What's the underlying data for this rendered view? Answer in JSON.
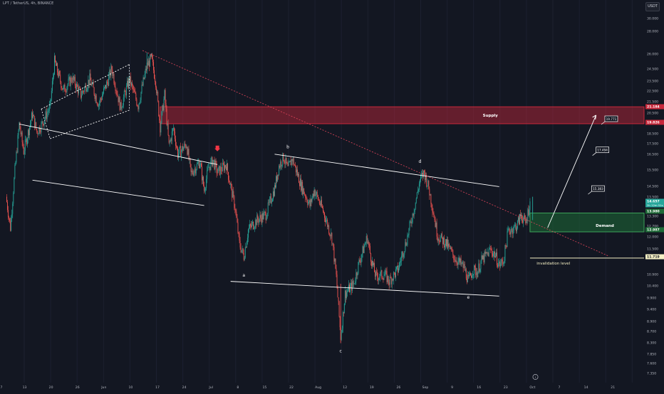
{
  "header": {
    "symbol_line": "LPT / TetherUS, 4h, BINANCE",
    "currency": "USDT",
    "info_icon": "info-circle-icon"
  },
  "colors": {
    "background": "#131722",
    "up": "#26a69a",
    "down": "#ef5350",
    "supply": "#c8283b",
    "demand": "#1e6b37",
    "invalidation": "#f5f0c4",
    "trendline": "#ffffff",
    "dotted_trend": "#e0445a",
    "arrow_marker": "#f23645"
  },
  "chart_data": {
    "type": "candlestick",
    "symbol": "LPT / TetherUS",
    "timeframe": "4h",
    "exchange": "BINANCE",
    "y_scale": "log",
    "ylim": [
      7.2,
      31.2
    ],
    "x_ticks": [
      "7",
      "13",
      "20",
      "26",
      "Jun",
      "10",
      "17",
      "24",
      "Jul",
      "8",
      "15",
      "22",
      "Aug",
      "12",
      "19",
      "26",
      "Sep",
      "9",
      "16",
      "23",
      "Oct",
      "7",
      "14",
      "21"
    ],
    "y_ticks": [
      "30.000",
      "28.000",
      "26.000",
      "24.500",
      "23.500",
      "22.500",
      "21.500",
      "20.500",
      "19.500",
      "18.500",
      "17.500",
      "16.500",
      "15.500",
      "14.500",
      "13.500",
      "13.300",
      "12.700",
      "12.000",
      "11.500",
      "10.900",
      "10.400",
      "9.900",
      "9.400",
      "8.900",
      "8.700",
      "8.300",
      "7.850",
      "7.600",
      "7.350"
    ],
    "path_points": [
      {
        "d": 0,
        "v": 14.9
      },
      {
        "d": 1,
        "v": 13.2
      },
      {
        "d": 2,
        "v": 16.5
      },
      {
        "d": 3,
        "v": 19.8
      },
      {
        "d": 4,
        "v": 17.8
      },
      {
        "d": 6,
        "v": 20.6
      },
      {
        "d": 7,
        "v": 19.2
      },
      {
        "d": 8,
        "v": 19.7
      },
      {
        "d": 10,
        "v": 21.2
      },
      {
        "d": 11,
        "v": 25.3
      },
      {
        "d": 13,
        "v": 22.6
      },
      {
        "d": 15,
        "v": 23.7
      },
      {
        "d": 17,
        "v": 22.2
      },
      {
        "d": 19,
        "v": 23.6
      },
      {
        "d": 21,
        "v": 21.4
      },
      {
        "d": 23,
        "v": 23.3
      },
      {
        "d": 24,
        "v": 24.6
      },
      {
        "d": 26,
        "v": 21.1
      },
      {
        "d": 28,
        "v": 23.6
      },
      {
        "d": 30,
        "v": 21.3
      },
      {
        "d": 32,
        "v": 24.9
      },
      {
        "d": 33,
        "v": 25.6
      },
      {
        "d": 34,
        "v": 23.4
      },
      {
        "d": 35,
        "v": 19.6
      },
      {
        "d": 36,
        "v": 22.2
      },
      {
        "d": 37,
        "v": 18.2
      },
      {
        "d": 38,
        "v": 19.5
      },
      {
        "d": 39,
        "v": 17.6
      },
      {
        "d": 41,
        "v": 18.3
      },
      {
        "d": 42,
        "v": 16.3
      },
      {
        "d": 44,
        "v": 17.1
      },
      {
        "d": 45,
        "v": 15.3
      },
      {
        "d": 46,
        "v": 16.7
      },
      {
        "d": 47,
        "v": 17.2
      },
      {
        "d": 48,
        "v": 16.4
      },
      {
        "d": 50,
        "v": 16.9
      },
      {
        "d": 52,
        "v": 14.3
      },
      {
        "d": 53,
        "v": 12.4
      },
      {
        "d": 54,
        "v": 11.8
      },
      {
        "d": 55,
        "v": 13.1
      },
      {
        "d": 57,
        "v": 13.6
      },
      {
        "d": 59,
        "v": 13.9
      },
      {
        "d": 61,
        "v": 15.4
      },
      {
        "d": 62,
        "v": 16.8
      },
      {
        "d": 63,
        "v": 17.4
      },
      {
        "d": 64,
        "v": 16.6
      },
      {
        "d": 65,
        "v": 17.3
      },
      {
        "d": 67,
        "v": 15.6
      },
      {
        "d": 69,
        "v": 14.4
      },
      {
        "d": 70,
        "v": 15.3
      },
      {
        "d": 72,
        "v": 14.1
      },
      {
        "d": 74,
        "v": 12.7
      },
      {
        "d": 75,
        "v": 10.9
      },
      {
        "d": 76,
        "v": 8.6
      },
      {
        "d": 77,
        "v": 10.2
      },
      {
        "d": 79,
        "v": 10.6
      },
      {
        "d": 80,
        "v": 11.4
      },
      {
        "d": 82,
        "v": 12.7
      },
      {
        "d": 83,
        "v": 11.6
      },
      {
        "d": 84,
        "v": 10.9
      },
      {
        "d": 86,
        "v": 11.0
      },
      {
        "d": 87,
        "v": 10.7
      },
      {
        "d": 89,
        "v": 11.2
      },
      {
        "d": 90,
        "v": 11.9
      },
      {
        "d": 91,
        "v": 12.6
      },
      {
        "d": 93,
        "v": 14.6
      },
      {
        "d": 94,
        "v": 15.9
      },
      {
        "d": 95,
        "v": 16.4
      },
      {
        "d": 96,
        "v": 15.4
      },
      {
        "d": 97,
        "v": 14.1
      },
      {
        "d": 98,
        "v": 12.8
      },
      {
        "d": 100,
        "v": 12.4
      },
      {
        "d": 102,
        "v": 11.7
      },
      {
        "d": 104,
        "v": 11.3
      },
      {
        "d": 105,
        "v": 10.7
      },
      {
        "d": 106,
        "v": 11.2
      },
      {
        "d": 107,
        "v": 11.1
      },
      {
        "d": 108,
        "v": 11.6
      },
      {
        "d": 110,
        "v": 12.1
      },
      {
        "d": 111,
        "v": 11.9
      },
      {
        "d": 112,
        "v": 11.4
      },
      {
        "d": 113,
        "v": 11.6
      },
      {
        "d": 114,
        "v": 13.0
      },
      {
        "d": 116,
        "v": 13.3
      },
      {
        "d": 117,
        "v": 13.9
      },
      {
        "d": 118,
        "v": 13.4
      },
      {
        "d": 119,
        "v": 14.6
      }
    ],
    "zones": {
      "supply": {
        "label": "Supply",
        "top": 21.184,
        "bottom": 19.826
      },
      "demand": {
        "label": "Demand",
        "top": 13.98,
        "bottom": 12.987
      },
      "invalidation": {
        "label": "invalidation level",
        "price": 11.719
      }
    },
    "wave_labels": [
      {
        "label": "a",
        "d": 54,
        "v": 10.9
      },
      {
        "label": "b",
        "d": 64,
        "v": 18.0
      },
      {
        "label": "c",
        "d": 76,
        "v": 8.1
      },
      {
        "label": "d",
        "d": 94,
        "v": 17.0
      },
      {
        "label": "e",
        "d": 105,
        "v": 10.0
      }
    ],
    "targets": [
      {
        "label": "19.771",
        "d": 136,
        "v": 20.1
      },
      {
        "label": "17.494",
        "d": 134,
        "v": 17.8
      },
      {
        "label": "15.383",
        "d": 133,
        "v": 15.3
      }
    ],
    "price_labels": [
      {
        "text": "21.184",
        "color": "#c8283b"
      },
      {
        "text": "19.826",
        "color": "#c8283b"
      },
      {
        "text": "14.657",
        "sub": "2h 12m 51s",
        "color": "#26a69a"
      },
      {
        "text": "13.980",
        "color": "#1e6b37"
      },
      {
        "text": "12.987",
        "color": "#1e6b37"
      },
      {
        "text": "11.719",
        "color": "#f5f0c4"
      }
    ],
    "trendlines": [
      {
        "name": "channel-upper-1",
        "from": {
          "d": 3,
          "v": 19.8
        },
        "to": {
          "d": 48,
          "v": 16.9
        }
      },
      {
        "name": "channel-lower-1",
        "from": {
          "d": 6,
          "v": 15.9
        },
        "to": {
          "d": 45,
          "v": 14.4
        }
      },
      {
        "name": "triangle-upper",
        "from": {
          "d": 61,
          "v": 17.6
        },
        "to": {
          "d": 112,
          "v": 15.5
        }
      },
      {
        "name": "triangle-lower",
        "from": {
          "d": 51,
          "v": 10.7
        },
        "to": {
          "d": 112,
          "v": 10.1
        }
      },
      {
        "name": "dotted-downtrend",
        "from": {
          "d": 31,
          "v": 26.4
        },
        "to": {
          "d": 137,
          "v": 11.8
        }
      },
      {
        "name": "wedge-top",
        "from": {
          "d": 8,
          "v": 21.0
        },
        "to": {
          "d": 28,
          "v": 25.0
        }
      },
      {
        "name": "wedge-bottom",
        "from": {
          "d": 10,
          "v": 18.7
        },
        "to": {
          "d": 28,
          "v": 20.9
        }
      },
      {
        "name": "projection-arrow",
        "from": {
          "d": 123,
          "v": 13.2
        },
        "to": {
          "d": 134,
          "v": 20.5
        }
      }
    ],
    "red_marker": {
      "d": 48,
      "v": 17.8
    }
  }
}
